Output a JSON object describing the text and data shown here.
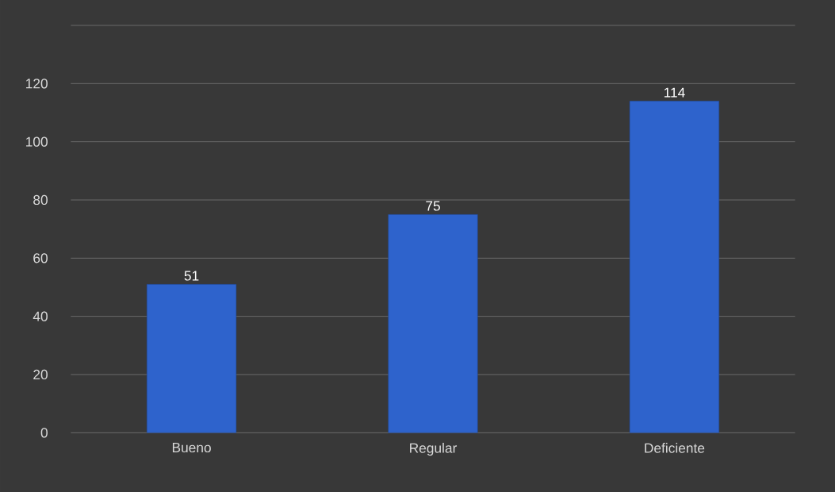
{
  "chart_data": {
    "type": "bar",
    "categories": [
      "Bueno",
      "Regular",
      "Deficiente"
    ],
    "values": [
      51,
      75,
      114
    ],
    "color": "#2e63cc",
    "ylim": [
      0,
      140
    ],
    "yticks": [
      0,
      20,
      40,
      60,
      80,
      100,
      120,
      {
        "value": 140,
        "label": null
      }
    ],
    "grid": "y",
    "data_labels": true
  }
}
